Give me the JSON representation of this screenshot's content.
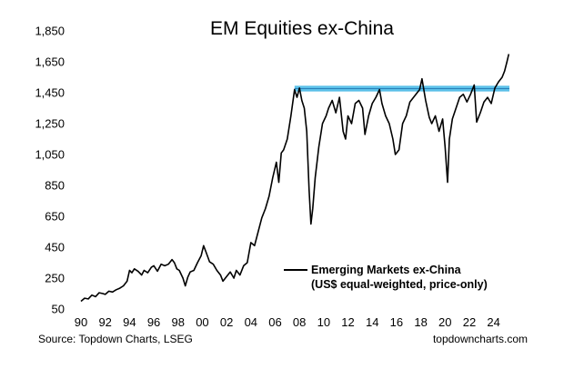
{
  "chart_data": {
    "type": "line",
    "title": "EM Equities ex-China",
    "xlabel": "",
    "ylabel": "",
    "x_ticks": [
      "90",
      "92",
      "94",
      "96",
      "98",
      "00",
      "02",
      "04",
      "06",
      "08",
      "10",
      "12",
      "14",
      "16",
      "18",
      "20",
      "22",
      "24"
    ],
    "y_ticks": [
      "50",
      "250",
      "450",
      "650",
      "850",
      "1,050",
      "1,250",
      "1,450",
      "1,650",
      "1,850"
    ],
    "xlim": [
      1990,
      2025.3
    ],
    "ylim": [
      50,
      1850
    ],
    "grid": false,
    "legend": {
      "placement": "bottom-right",
      "label_line1": "Emerging Markets ex-China",
      "label_line2": "(US$ equal-weighted, price-only)"
    },
    "resistance_band": {
      "color": "#5bc0e8",
      "from": 2007.6,
      "to": 2025.3,
      "low": 1458,
      "high": 1495
    },
    "colors": {
      "series": "#000000",
      "band": "#5bc0e8"
    },
    "series": [
      {
        "name": "Emerging Markets ex-China (US$ equal-weighted, price-only)",
        "x": [
          1990.0,
          1990.3,
          1990.6,
          1990.9,
          1991.2,
          1991.5,
          1991.8,
          1992.0,
          1992.3,
          1992.6,
          1992.9,
          1993.2,
          1993.5,
          1993.8,
          1994.0,
          1994.2,
          1994.4,
          1994.7,
          1995.0,
          1995.2,
          1995.5,
          1995.8,
          1996.0,
          1996.3,
          1996.6,
          1996.9,
          1997.2,
          1997.5,
          1997.7,
          1997.9,
          1998.1,
          1998.4,
          1998.6,
          1998.8,
          1999.0,
          1999.3,
          1999.6,
          1999.9,
          2000.1,
          2000.3,
          2000.6,
          2000.9,
          2001.2,
          2001.5,
          2001.7,
          2002.0,
          2002.3,
          2002.6,
          2002.8,
          2003.1,
          2003.4,
          2003.7,
          2004.0,
          2004.3,
          2004.6,
          2004.9,
          2005.2,
          2005.5,
          2005.8,
          2006.1,
          2006.3,
          2006.5,
          2006.7,
          2007.0,
          2007.3,
          2007.6,
          2007.8,
          2008.0,
          2008.2,
          2008.4,
          2008.6,
          2008.8,
          2008.95,
          2009.1,
          2009.3,
          2009.6,
          2009.9,
          2010.2,
          2010.4,
          2010.7,
          2011.0,
          2011.3,
          2011.6,
          2011.8,
          2012.0,
          2012.3,
          2012.6,
          2012.9,
          2013.2,
          2013.4,
          2013.7,
          2014.0,
          2014.3,
          2014.6,
          2014.8,
          2015.1,
          2015.4,
          2015.7,
          2015.9,
          2016.2,
          2016.5,
          2016.8,
          2017.1,
          2017.4,
          2017.7,
          2017.9,
          2018.1,
          2018.4,
          2018.7,
          2018.9,
          2019.2,
          2019.5,
          2019.8,
          2020.0,
          2020.2,
          2020.35,
          2020.6,
          2020.9,
          2021.2,
          2021.5,
          2021.8,
          2022.1,
          2022.4,
          2022.6,
          2022.9,
          2023.2,
          2023.5,
          2023.8,
          2024.1,
          2024.4,
          2024.7,
          2024.9,
          2025.1,
          2025.25
        ],
        "values": [
          100,
          120,
          115,
          140,
          130,
          155,
          150,
          145,
          165,
          160,
          175,
          185,
          200,
          230,
          300,
          285,
          310,
          295,
          270,
          300,
          285,
          320,
          330,
          295,
          340,
          330,
          340,
          370,
          350,
          310,
          300,
          250,
          200,
          255,
          290,
          300,
          350,
          395,
          460,
          420,
          355,
          340,
          300,
          270,
          230,
          260,
          290,
          250,
          300,
          270,
          330,
          350,
          480,
          460,
          550,
          640,
          700,
          780,
          900,
          1000,
          870,
          1060,
          1080,
          1150,
          1300,
          1470,
          1420,
          1480,
          1400,
          1350,
          1200,
          820,
          600,
          700,
          900,
          1100,
          1250,
          1300,
          1350,
          1400,
          1320,
          1420,
          1200,
          1150,
          1300,
          1250,
          1380,
          1400,
          1350,
          1180,
          1300,
          1380,
          1420,
          1470,
          1380,
          1300,
          1250,
          1150,
          1050,
          1080,
          1250,
          1300,
          1390,
          1420,
          1450,
          1470,
          1540,
          1400,
          1290,
          1250,
          1300,
          1200,
          1280,
          1100,
          870,
          1150,
          1280,
          1350,
          1420,
          1440,
          1390,
          1440,
          1500,
          1260,
          1320,
          1390,
          1420,
          1380,
          1480,
          1520,
          1550,
          1590,
          1650,
          1700
        ]
      }
    ]
  },
  "footer": {
    "source": "Source: Topdown Charts, LSEG",
    "site": "topdowncharts.com"
  }
}
